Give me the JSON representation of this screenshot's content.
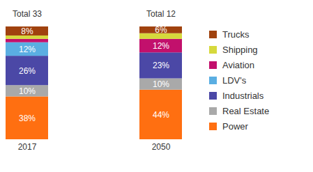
{
  "chart_data": {
    "type": "bar",
    "stacked": true,
    "data_labels": true,
    "tick_labels": "x",
    "legend": "right",
    "categories": [
      "2017",
      "2050"
    ],
    "ylim": [
      0,
      100
    ],
    "totals": {
      "values": [
        33,
        12
      ],
      "value_labels": [
        "Total 33",
        "Total 12"
      ]
    },
    "series": [
      {
        "name": "Power",
        "color": "#ff6f11",
        "values": [
          38,
          44
        ],
        "value_labels": [
          "38%",
          "44%"
        ]
      },
      {
        "name": "Real Estate",
        "color": "#a9a9a9",
        "values": [
          10,
          10
        ],
        "value_labels": [
          "10%",
          "10%"
        ]
      },
      {
        "name": "Industrials",
        "color": "#4b48a6",
        "values": [
          26,
          23
        ],
        "value_labels": [
          "26%",
          "23%"
        ]
      },
      {
        "name": "LDV's",
        "color": "#5aaee2",
        "values": [
          12,
          0
        ],
        "value_labels": [
          "12%",
          null
        ]
      },
      {
        "name": "Aviation",
        "color": "#c2106c",
        "values": [
          3,
          12
        ],
        "value_labels": [
          null,
          "12%"
        ]
      },
      {
        "name": "Shipping",
        "color": "#d6d93c",
        "values": [
          3,
          5
        ],
        "value_labels": [
          null,
          null
        ]
      },
      {
        "name": "Trucks",
        "color": "#a0420e",
        "values": [
          8,
          6
        ],
        "value_labels": [
          "8%",
          "6%"
        ]
      }
    ]
  }
}
